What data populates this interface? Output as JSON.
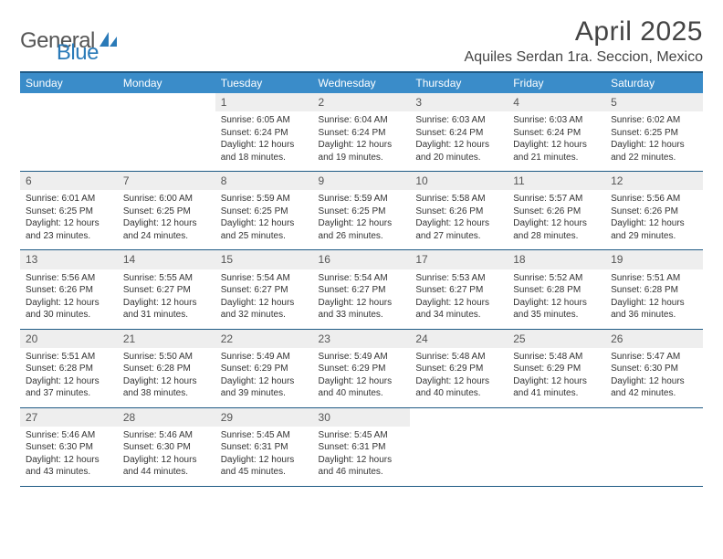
{
  "logo": {
    "word1": "General",
    "word2": "Blue",
    "icon_color": "#2a7ab8"
  },
  "title": "April 2025",
  "location": "Aquiles Serdan 1ra. Seccion, Mexico",
  "colors": {
    "header_bg": "#3a8cc9",
    "header_border": "#1f5a85",
    "row_border": "#1f5a85",
    "daynum_bg": "#eeeeee",
    "text": "#333333"
  },
  "day_headers": [
    "Sunday",
    "Monday",
    "Tuesday",
    "Wednesday",
    "Thursday",
    "Friday",
    "Saturday"
  ],
  "weeks": [
    [
      null,
      null,
      {
        "n": "1",
        "sr": "Sunrise: 6:05 AM",
        "ss": "Sunset: 6:24 PM",
        "d1": "Daylight: 12 hours",
        "d2": "and 18 minutes."
      },
      {
        "n": "2",
        "sr": "Sunrise: 6:04 AM",
        "ss": "Sunset: 6:24 PM",
        "d1": "Daylight: 12 hours",
        "d2": "and 19 minutes."
      },
      {
        "n": "3",
        "sr": "Sunrise: 6:03 AM",
        "ss": "Sunset: 6:24 PM",
        "d1": "Daylight: 12 hours",
        "d2": "and 20 minutes."
      },
      {
        "n": "4",
        "sr": "Sunrise: 6:03 AM",
        "ss": "Sunset: 6:24 PM",
        "d1": "Daylight: 12 hours",
        "d2": "and 21 minutes."
      },
      {
        "n": "5",
        "sr": "Sunrise: 6:02 AM",
        "ss": "Sunset: 6:25 PM",
        "d1": "Daylight: 12 hours",
        "d2": "and 22 minutes."
      }
    ],
    [
      {
        "n": "6",
        "sr": "Sunrise: 6:01 AM",
        "ss": "Sunset: 6:25 PM",
        "d1": "Daylight: 12 hours",
        "d2": "and 23 minutes."
      },
      {
        "n": "7",
        "sr": "Sunrise: 6:00 AM",
        "ss": "Sunset: 6:25 PM",
        "d1": "Daylight: 12 hours",
        "d2": "and 24 minutes."
      },
      {
        "n": "8",
        "sr": "Sunrise: 5:59 AM",
        "ss": "Sunset: 6:25 PM",
        "d1": "Daylight: 12 hours",
        "d2": "and 25 minutes."
      },
      {
        "n": "9",
        "sr": "Sunrise: 5:59 AM",
        "ss": "Sunset: 6:25 PM",
        "d1": "Daylight: 12 hours",
        "d2": "and 26 minutes."
      },
      {
        "n": "10",
        "sr": "Sunrise: 5:58 AM",
        "ss": "Sunset: 6:26 PM",
        "d1": "Daylight: 12 hours",
        "d2": "and 27 minutes."
      },
      {
        "n": "11",
        "sr": "Sunrise: 5:57 AM",
        "ss": "Sunset: 6:26 PM",
        "d1": "Daylight: 12 hours",
        "d2": "and 28 minutes."
      },
      {
        "n": "12",
        "sr": "Sunrise: 5:56 AM",
        "ss": "Sunset: 6:26 PM",
        "d1": "Daylight: 12 hours",
        "d2": "and 29 minutes."
      }
    ],
    [
      {
        "n": "13",
        "sr": "Sunrise: 5:56 AM",
        "ss": "Sunset: 6:26 PM",
        "d1": "Daylight: 12 hours",
        "d2": "and 30 minutes."
      },
      {
        "n": "14",
        "sr": "Sunrise: 5:55 AM",
        "ss": "Sunset: 6:27 PM",
        "d1": "Daylight: 12 hours",
        "d2": "and 31 minutes."
      },
      {
        "n": "15",
        "sr": "Sunrise: 5:54 AM",
        "ss": "Sunset: 6:27 PM",
        "d1": "Daylight: 12 hours",
        "d2": "and 32 minutes."
      },
      {
        "n": "16",
        "sr": "Sunrise: 5:54 AM",
        "ss": "Sunset: 6:27 PM",
        "d1": "Daylight: 12 hours",
        "d2": "and 33 minutes."
      },
      {
        "n": "17",
        "sr": "Sunrise: 5:53 AM",
        "ss": "Sunset: 6:27 PM",
        "d1": "Daylight: 12 hours",
        "d2": "and 34 minutes."
      },
      {
        "n": "18",
        "sr": "Sunrise: 5:52 AM",
        "ss": "Sunset: 6:28 PM",
        "d1": "Daylight: 12 hours",
        "d2": "and 35 minutes."
      },
      {
        "n": "19",
        "sr": "Sunrise: 5:51 AM",
        "ss": "Sunset: 6:28 PM",
        "d1": "Daylight: 12 hours",
        "d2": "and 36 minutes."
      }
    ],
    [
      {
        "n": "20",
        "sr": "Sunrise: 5:51 AM",
        "ss": "Sunset: 6:28 PM",
        "d1": "Daylight: 12 hours",
        "d2": "and 37 minutes."
      },
      {
        "n": "21",
        "sr": "Sunrise: 5:50 AM",
        "ss": "Sunset: 6:28 PM",
        "d1": "Daylight: 12 hours",
        "d2": "and 38 minutes."
      },
      {
        "n": "22",
        "sr": "Sunrise: 5:49 AM",
        "ss": "Sunset: 6:29 PM",
        "d1": "Daylight: 12 hours",
        "d2": "and 39 minutes."
      },
      {
        "n": "23",
        "sr": "Sunrise: 5:49 AM",
        "ss": "Sunset: 6:29 PM",
        "d1": "Daylight: 12 hours",
        "d2": "and 40 minutes."
      },
      {
        "n": "24",
        "sr": "Sunrise: 5:48 AM",
        "ss": "Sunset: 6:29 PM",
        "d1": "Daylight: 12 hours",
        "d2": "and 40 minutes."
      },
      {
        "n": "25",
        "sr": "Sunrise: 5:48 AM",
        "ss": "Sunset: 6:29 PM",
        "d1": "Daylight: 12 hours",
        "d2": "and 41 minutes."
      },
      {
        "n": "26",
        "sr": "Sunrise: 5:47 AM",
        "ss": "Sunset: 6:30 PM",
        "d1": "Daylight: 12 hours",
        "d2": "and 42 minutes."
      }
    ],
    [
      {
        "n": "27",
        "sr": "Sunrise: 5:46 AM",
        "ss": "Sunset: 6:30 PM",
        "d1": "Daylight: 12 hours",
        "d2": "and 43 minutes."
      },
      {
        "n": "28",
        "sr": "Sunrise: 5:46 AM",
        "ss": "Sunset: 6:30 PM",
        "d1": "Daylight: 12 hours",
        "d2": "and 44 minutes."
      },
      {
        "n": "29",
        "sr": "Sunrise: 5:45 AM",
        "ss": "Sunset: 6:31 PM",
        "d1": "Daylight: 12 hours",
        "d2": "and 45 minutes."
      },
      {
        "n": "30",
        "sr": "Sunrise: 5:45 AM",
        "ss": "Sunset: 6:31 PM",
        "d1": "Daylight: 12 hours",
        "d2": "and 46 minutes."
      },
      null,
      null,
      null
    ]
  ]
}
